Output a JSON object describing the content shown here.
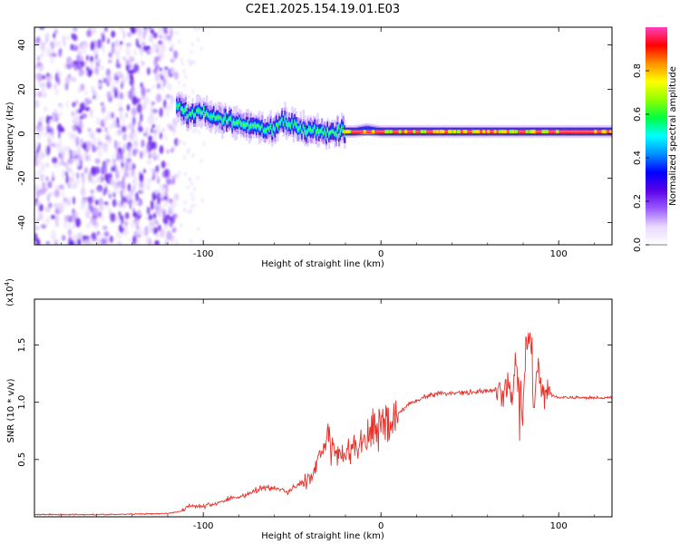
{
  "title": "C2E1.2025.154.19.01.E03",
  "chart_data": [
    {
      "type": "heatmap",
      "name": "spectrogram",
      "xlabel": "Height of straight line (km)",
      "ylabel": "Frequency (Hz)",
      "xlim": [
        -195,
        130
      ],
      "ylim": [
        -50,
        48
      ],
      "xticks": [
        -100,
        0,
        100
      ],
      "xtick_labels": [
        "-100",
        "0",
        "100"
      ],
      "yticks": [
        -40,
        -20,
        0,
        20,
        40
      ],
      "ytick_labels": [
        "-40",
        "-20",
        "0",
        "20",
        "40"
      ],
      "noise_region_x": [
        -195,
        -115
      ],
      "signal_start_x": -115,
      "ridge": {
        "x": [
          -115,
          -108,
          -100,
          -92,
          -85,
          -78,
          -70,
          -62,
          -55,
          -48,
          -42,
          -36,
          -30,
          -22,
          -15,
          -8,
          0,
          10,
          30,
          50,
          70,
          75,
          80,
          100,
          130
        ],
        "freq": [
          12,
          9,
          10,
          7,
          5,
          4,
          3,
          2,
          6,
          4,
          1,
          2,
          0,
          1,
          1,
          2,
          1,
          1,
          1,
          1,
          1,
          1,
          1,
          1,
          1
        ]
      },
      "colorbar": {
        "label": "Normalized spectral amplitude",
        "range": [
          0,
          1
        ],
        "ticks": [
          0.0,
          0.2,
          0.4,
          0.6,
          0.8
        ],
        "tick_labels": [
          "0.0",
          "0.2",
          "0.4",
          "0.6",
          "0.8"
        ],
        "colors": [
          "#ffffff",
          "#e8d8ff",
          "#9a5bff",
          "#5a00e6",
          "#0000ff",
          "#0090ff",
          "#00ffff",
          "#00ff40",
          "#90ff00",
          "#ffff00",
          "#ff9000",
          "#ff0000",
          "#ff40c0"
        ]
      }
    },
    {
      "type": "line",
      "name": "snr",
      "xlabel": "Height of straight line (km)",
      "ylabel": "SNR (10 * v/v)",
      "scale_label": "(x10",
      "scale_exp": "4",
      "scale_close": ")",
      "xlim": [
        -195,
        130
      ],
      "ylim": [
        0,
        1.9
      ],
      "xticks": [
        -100,
        0,
        100
      ],
      "xtick_labels": [
        "-100",
        "0",
        "100"
      ],
      "yticks": [
        0.5,
        1.0,
        1.5
      ],
      "ytick_labels": [
        "0.5",
        "1.0",
        "1.5"
      ],
      "color": "#e8302a",
      "x": [
        -195,
        -150,
        -120,
        -112,
        -108,
        -100,
        -92,
        -85,
        -78,
        -72,
        -65,
        -58,
        -52,
        -45,
        -40,
        -36,
        -32,
        -30,
        -27,
        -24,
        -20,
        -16,
        -12,
        -8,
        -4,
        0,
        5,
        10,
        15,
        20,
        25,
        30,
        35,
        40,
        50,
        60,
        65,
        68,
        70,
        72,
        74,
        76,
        78,
        80,
        82,
        84,
        86,
        88,
        90,
        94,
        98,
        102,
        108,
        115,
        122,
        130
      ],
      "y": [
        0.02,
        0.02,
        0.03,
        0.05,
        0.1,
        0.09,
        0.12,
        0.16,
        0.18,
        0.22,
        0.26,
        0.24,
        0.22,
        0.3,
        0.33,
        0.45,
        0.58,
        0.68,
        0.6,
        0.52,
        0.55,
        0.62,
        0.65,
        0.7,
        0.75,
        0.8,
        0.85,
        0.9,
        0.98,
        1.02,
        1.05,
        1.07,
        1.08,
        1.08,
        1.09,
        1.1,
        1.11,
        1.0,
        1.15,
        1.2,
        0.98,
        1.35,
        1.1,
        0.95,
        1.6,
        1.55,
        0.9,
        1.3,
        1.15,
        1.08,
        1.05,
        1.04,
        1.04,
        1.04,
        1.04,
        1.04
      ]
    }
  ]
}
